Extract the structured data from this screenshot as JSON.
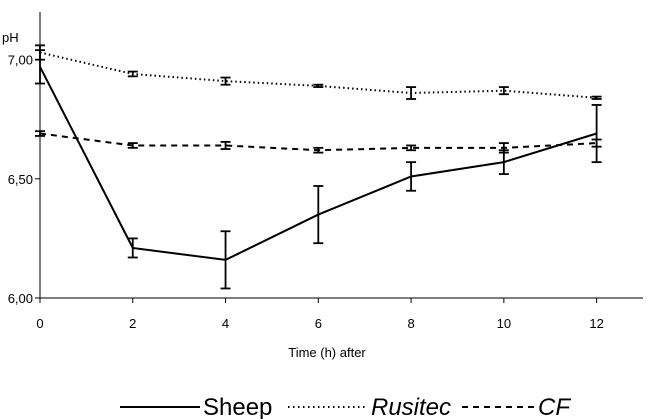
{
  "chart_data": {
    "type": "line",
    "title": "",
    "xlabel": "Time (h) after",
    "ylabel": "pH",
    "x": [
      0,
      2,
      4,
      6,
      8,
      10,
      12
    ],
    "xlim": [
      0,
      13
    ],
    "ylim": [
      6.0,
      7.2
    ],
    "x_ticks": [
      "0",
      "2",
      "4",
      "6",
      "8",
      "10",
      "12"
    ],
    "y_ticks": [
      "6,00",
      "6,50",
      "7,00"
    ],
    "y_tick_values": [
      6.0,
      6.5,
      7.0
    ],
    "grid": false,
    "legend_position": "bottom",
    "series": [
      {
        "name": "Sheep",
        "style": "solid",
        "color": "#000000",
        "values": [
          6.97,
          6.21,
          6.16,
          6.35,
          6.51,
          6.57,
          6.69
        ],
        "errors": [
          0.07,
          0.04,
          0.12,
          0.12,
          0.06,
          0.05,
          0.12
        ]
      },
      {
        "name": "Rusitec",
        "style": "dotted",
        "color": "#000000",
        "values": [
          7.03,
          6.94,
          6.91,
          6.89,
          6.86,
          6.87,
          6.84
        ],
        "errors": [
          0.03,
          0.01,
          0.015,
          0.005,
          0.025,
          0.015,
          0.005
        ]
      },
      {
        "name": "CF",
        "style": "dashed",
        "color": "#000000",
        "values": [
          6.69,
          6.64,
          6.64,
          6.62,
          6.63,
          6.63,
          6.65
        ],
        "errors": [
          0.01,
          0.01,
          0.015,
          0.01,
          0.01,
          0.02,
          0.015
        ]
      }
    ]
  }
}
